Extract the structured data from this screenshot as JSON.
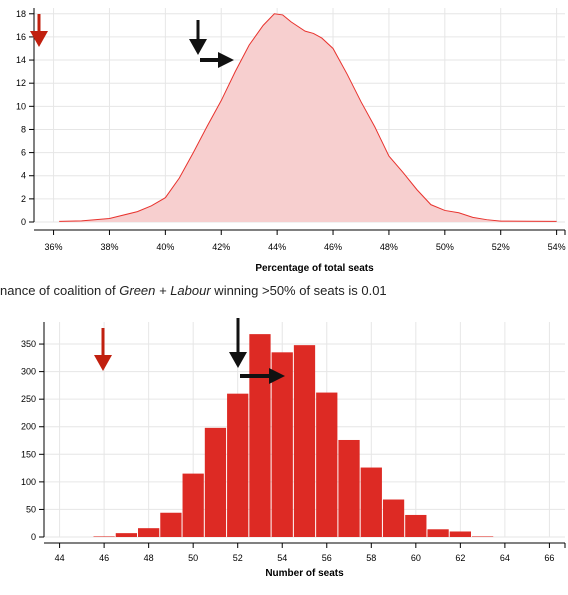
{
  "charts": {
    "top": {
      "xlabel": "Percentage of total seats",
      "x_ticks": [
        "36%",
        "38%",
        "40%",
        "42%",
        "44%",
        "46%",
        "48%",
        "50%",
        "52%",
        "54%"
      ],
      "y_ticks": [
        "0",
        "2",
        "4",
        "6",
        "8",
        "10",
        "12",
        "14",
        "16",
        "18"
      ]
    },
    "bottom": {
      "xlabel": "Number of seats",
      "x_ticks": [
        "44",
        "46",
        "48",
        "50",
        "52",
        "54",
        "56",
        "58",
        "60",
        "62",
        "64",
        "66"
      ],
      "y_ticks": [
        "0",
        "50",
        "100",
        "150",
        "200",
        "250",
        "300",
        "350"
      ]
    }
  },
  "caption": {
    "prefix": "nance of coalition of ",
    "parties": "Green + Labour",
    "suffix": " winning >50% of seats is 0.01"
  },
  "colors": {
    "fill_area": "#f7cfcf",
    "line": "#e8332e",
    "bar": "#dd2a24",
    "marker_red": "#c1200f",
    "marker_black": "#111111",
    "grid": "#e6e6e6"
  },
  "chart_data": [
    {
      "type": "area",
      "title": "",
      "xlabel": "Percentage of total seats",
      "ylabel": "",
      "xlim": [
        35.3,
        54.3
      ],
      "ylim": [
        0,
        18.5
      ],
      "grid": true,
      "x": [
        36.2,
        37.0,
        38.0,
        39.0,
        39.5,
        40.0,
        40.5,
        41.0,
        41.5,
        42.0,
        42.5,
        43.0,
        43.5,
        43.9,
        44.2,
        44.5,
        45.0,
        45.3,
        45.6,
        46.0,
        46.5,
        47.0,
        47.5,
        48.0,
        48.5,
        49.0,
        49.5,
        50.0,
        50.5,
        51.0,
        51.5,
        52.0,
        53.0,
        54.0
      ],
      "y": [
        0.05,
        0.1,
        0.3,
        0.9,
        1.4,
        2.1,
        3.8,
        6.0,
        8.3,
        10.5,
        13.0,
        15.3,
        17.0,
        18.0,
        17.9,
        17.3,
        16.5,
        16.3,
        15.9,
        15.0,
        12.8,
        10.4,
        8.2,
        5.7,
        4.3,
        2.8,
        1.5,
        1.0,
        0.8,
        0.4,
        0.2,
        0.08,
        0.06,
        0.05
      ],
      "markers": [
        {
          "kind": "down-arrow",
          "color": "red",
          "x": 35.5
        },
        {
          "kind": "down-arrow",
          "color": "black",
          "x": 41.6
        },
        {
          "kind": "right-arrow",
          "color": "black",
          "x_from": 41.9,
          "x_to": 43.3
        }
      ]
    },
    {
      "type": "bar",
      "title": "",
      "xlabel": "Number of seats",
      "ylabel": "",
      "xlim": [
        43.3,
        66.7
      ],
      "ylim": [
        0,
        390
      ],
      "grid": true,
      "categories": [
        46,
        47,
        48,
        49,
        50,
        51,
        52,
        53,
        54,
        55,
        56,
        57,
        58,
        59,
        60,
        61,
        62,
        63,
        64
      ],
      "values": [
        1,
        7,
        16,
        44,
        115,
        198,
        260,
        368,
        335,
        348,
        262,
        176,
        126,
        68,
        40,
        14,
        10,
        1,
        0
      ],
      "markers": [
        {
          "kind": "down-arrow",
          "color": "red",
          "x": 46
        },
        {
          "kind": "down-arrow",
          "color": "black",
          "x": 52
        },
        {
          "kind": "right-arrow",
          "color": "black",
          "x_from": 53.0,
          "x_to": 55.0
        }
      ]
    }
  ]
}
